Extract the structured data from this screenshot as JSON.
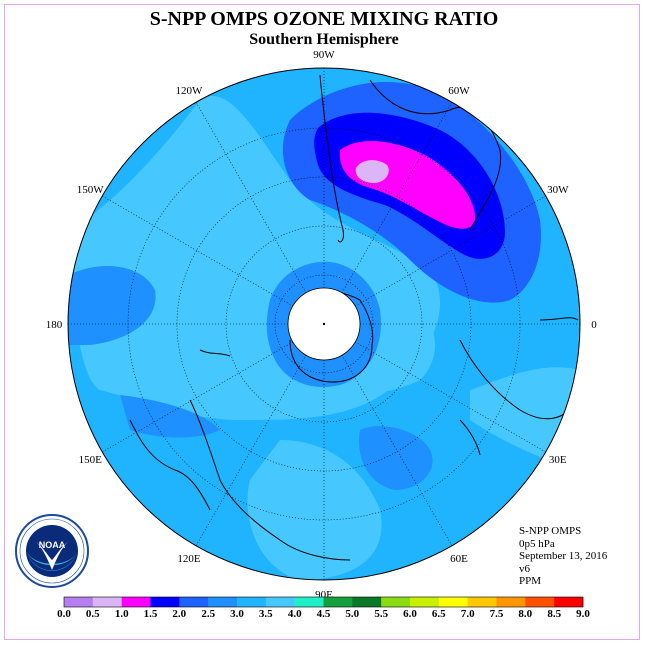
{
  "title": "S-NPP OMPS OZONE MIXING RATIO",
  "subtitle": "Southern Hemisphere",
  "longitude_labels": [
    {
      "text": "0",
      "lon": 0
    },
    {
      "text": "30E",
      "lon": 30
    },
    {
      "text": "60E",
      "lon": 60
    },
    {
      "text": "90E",
      "lon": 90
    },
    {
      "text": "120E",
      "lon": 120
    },
    {
      "text": "150E",
      "lon": 150
    },
    {
      "text": "180",
      "lon": 180
    },
    {
      "text": "150W",
      "lon": -150
    },
    {
      "text": "120W",
      "lon": -120
    },
    {
      "text": "90W",
      "lon": -90
    },
    {
      "text": "60W",
      "lon": -60
    },
    {
      "text": "30W",
      "lon": -30
    }
  ],
  "info": {
    "instrument": "S-NPP OMPS",
    "level": "0p5 hPa",
    "date": "September 13, 2016",
    "version": "v6",
    "units": "PPM"
  },
  "logo": {
    "text": "NOAA",
    "ring_text": "NATIONAL OCEANIC AND ATMOSPHERIC ADMINISTRATION · U.S. DEPARTMENT OF COMMERCE"
  },
  "colorbar": {
    "ticks": [
      "0.0",
      "0.5",
      "1.0",
      "1.5",
      "2.0",
      "2.5",
      "3.0",
      "3.5",
      "4.0",
      "4.5",
      "5.0",
      "5.5",
      "6.0",
      "6.5",
      "7.0",
      "7.5",
      "8.0",
      "8.5",
      "9.0"
    ],
    "colors": [
      "#b67ff0",
      "#dcb4f8",
      "#ff00ff",
      "#0000ff",
      "#1e62ff",
      "#1e90ff",
      "#20b4ff",
      "#46c8ff",
      "#20f0c8",
      "#14a03c",
      "#0a7828",
      "#8cdc14",
      "#c8f000",
      "#ffff00",
      "#ffc800",
      "#ff9600",
      "#ff5000",
      "#ff0000",
      "#8c5032"
    ]
  },
  "colors": {
    "background_field": "#20b4ff",
    "lighter_field": "#46c8ff",
    "darker_field": "#1e90ff",
    "coast": "#000000",
    "grid": "#000000"
  }
}
